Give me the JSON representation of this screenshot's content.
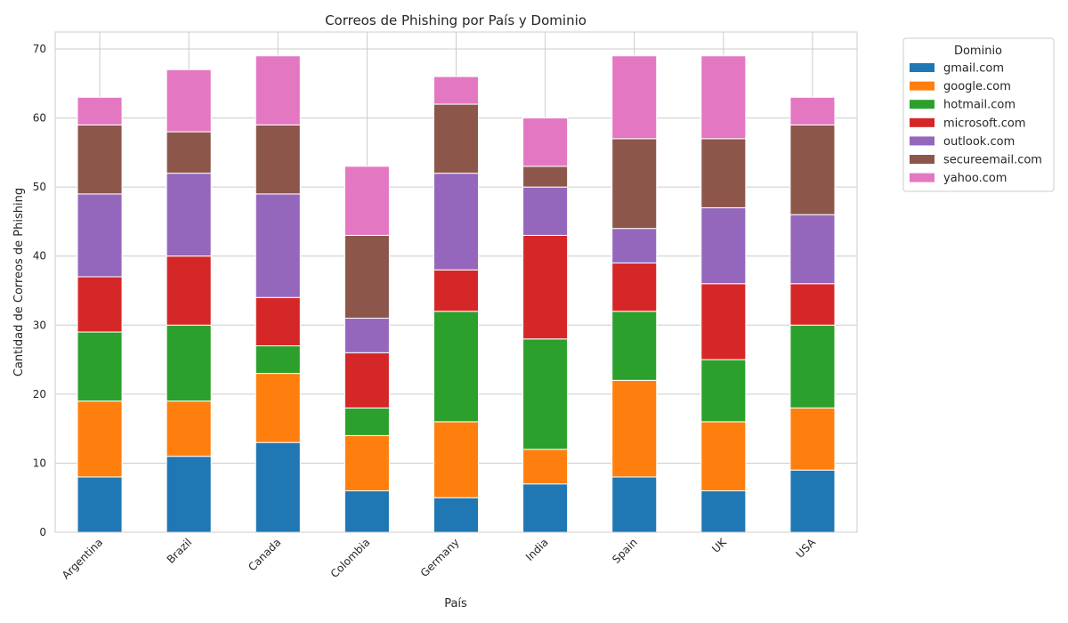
{
  "chart_data": {
    "type": "bar",
    "stacked": true,
    "title": "Correos de Phishing por País y Dominio",
    "xlabel": "País",
    "ylabel": "Cantidad de Correos de Phishing",
    "ylim": [
      0,
      72.45
    ],
    "yticks": [
      0,
      10,
      20,
      30,
      40,
      50,
      60,
      70
    ],
    "grid": true,
    "legend": {
      "title": "Dominio",
      "placement": "outside-top-right"
    },
    "categories": [
      "Argentina",
      "Brazil",
      "Canada",
      "Colombia",
      "Germany",
      "India",
      "Spain",
      "UK",
      "USA"
    ],
    "series": [
      {
        "name": "gmail.com",
        "color": "#1f77b4",
        "values": [
          8,
          11,
          13,
          6,
          5,
          7,
          8,
          6,
          9
        ]
      },
      {
        "name": "google.com",
        "color": "#ff7f0e",
        "values": [
          11,
          8,
          10,
          8,
          11,
          5,
          14,
          10,
          9
        ]
      },
      {
        "name": "hotmail.com",
        "color": "#2ca02c",
        "values": [
          10,
          11,
          4,
          4,
          16,
          16,
          10,
          9,
          12
        ]
      },
      {
        "name": "microsoft.com",
        "color": "#d62728",
        "values": [
          8,
          10,
          7,
          8,
          6,
          15,
          7,
          11,
          6
        ]
      },
      {
        "name": "outlook.com",
        "color": "#9467bd",
        "values": [
          12,
          12,
          15,
          5,
          14,
          7,
          5,
          11,
          10
        ]
      },
      {
        "name": "secureemail.com",
        "color": "#8c564b",
        "values": [
          10,
          6,
          10,
          12,
          10,
          3,
          13,
          10,
          13
        ]
      },
      {
        "name": "yahoo.com",
        "color": "#e377c2",
        "values": [
          4,
          9,
          10,
          10,
          4,
          7,
          12,
          12,
          4
        ]
      }
    ]
  }
}
